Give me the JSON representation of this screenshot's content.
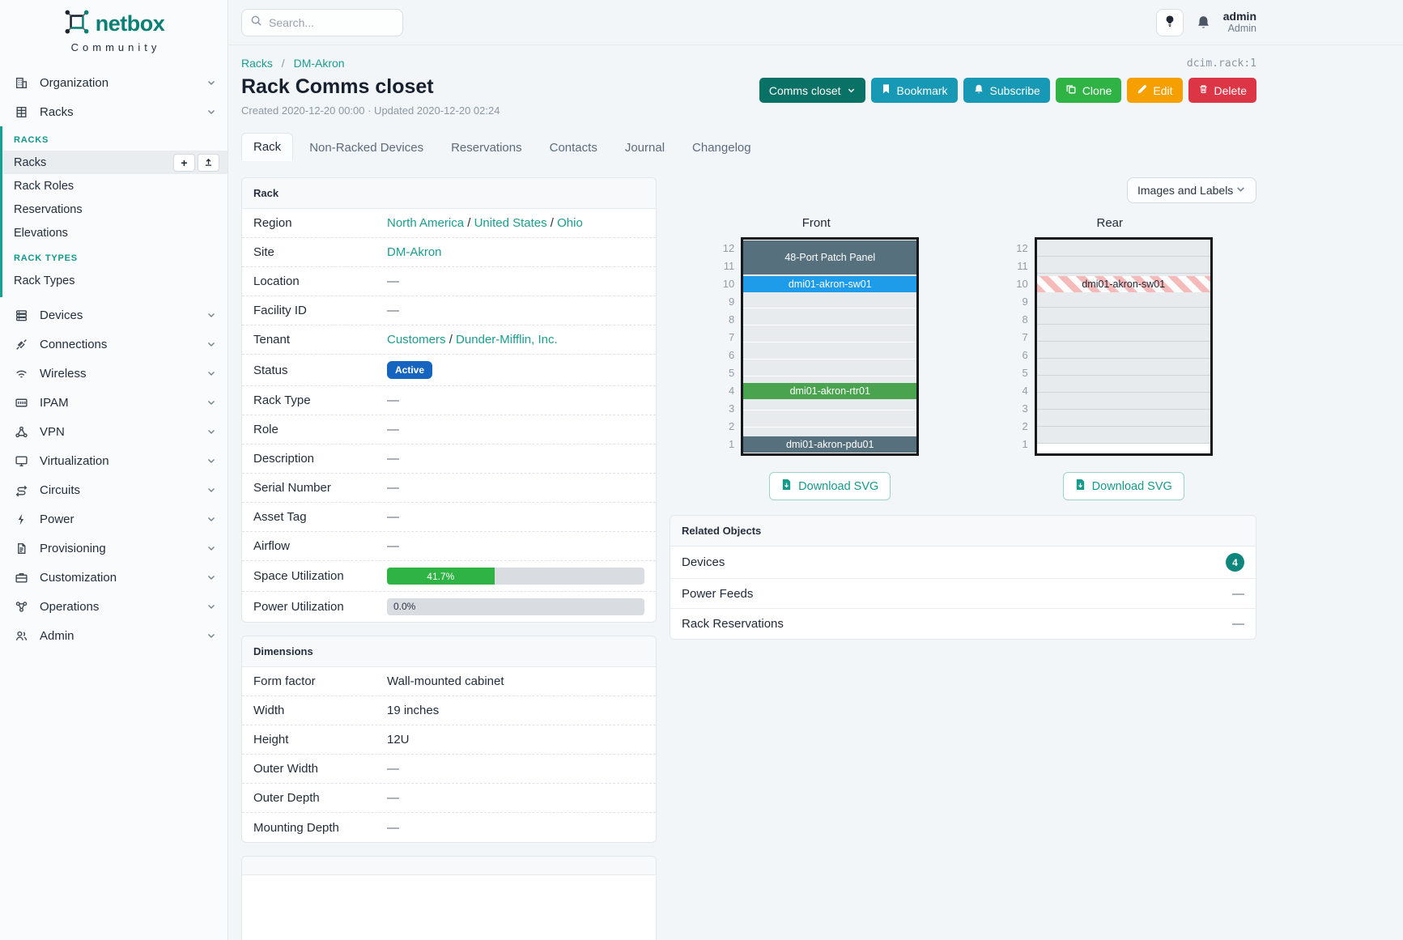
{
  "brand": {
    "name": "netbox",
    "tagline": "Community"
  },
  "topbar": {
    "search_placeholder": "Search...",
    "user_name": "admin",
    "user_role": "Admin"
  },
  "breadcrumb": {
    "items": [
      "Racks",
      "DM-Akron"
    ],
    "separator": "/"
  },
  "object_id": "dcim.rack:1",
  "page": {
    "title": "Rack Comms closet",
    "meta": "Created 2020-12-20 00:00 · Updated 2020-12-20 02:24"
  },
  "actions": {
    "view_select": {
      "label": "Comms closet"
    },
    "bookmark": "Bookmark",
    "subscribe": "Subscribe",
    "clone": "Clone",
    "edit": "Edit",
    "delete": "Delete"
  },
  "colors": {
    "brand_teal": "#0b8074",
    "link": "#1a9e8f",
    "active_badge": "#1565c0",
    "progress_green": "#2fb344",
    "device_slate": "#56707d",
    "device_blue": "#1e9ce9",
    "device_green": "#4aa44f",
    "reserved_stripe": "#f6baba",
    "count_badge": "#0f867b"
  },
  "tabs": [
    {
      "label": "Rack",
      "active": true
    },
    {
      "label": "Non-Racked Devices"
    },
    {
      "label": "Reservations"
    },
    {
      "label": "Contacts"
    },
    {
      "label": "Journal"
    },
    {
      "label": "Changelog"
    }
  ],
  "sidebar": {
    "top_groups": [
      {
        "label": "Organization",
        "icon": "building-icon"
      },
      {
        "label": "Racks",
        "icon": "rack-icon",
        "expanded": true
      }
    ],
    "racks_submenu": [
      {
        "header": "RACKS",
        "items": [
          {
            "label": "Racks",
            "active": true,
            "actions": [
              {
                "name": "add",
                "glyph": "+"
              },
              {
                "name": "import",
                "glyph": "upload"
              }
            ]
          },
          {
            "label": "Rack Roles"
          },
          {
            "label": "Reservations"
          },
          {
            "label": "Elevations"
          }
        ]
      },
      {
        "header": "RACK TYPES",
        "items": [
          {
            "label": "Rack Types"
          }
        ]
      }
    ],
    "groups": [
      {
        "label": "Devices",
        "icon": "server-icon"
      },
      {
        "label": "Connections",
        "icon": "plug-icon"
      },
      {
        "label": "Wireless",
        "icon": "wifi-icon"
      },
      {
        "label": "IPAM",
        "icon": "ipam-icon"
      },
      {
        "label": "VPN",
        "icon": "vpn-icon"
      },
      {
        "label": "Virtualization",
        "icon": "monitor-icon"
      },
      {
        "label": "Circuits",
        "icon": "circuit-icon"
      },
      {
        "label": "Power",
        "icon": "lightning-icon"
      },
      {
        "label": "Provisioning",
        "icon": "document-icon"
      },
      {
        "label": "Customization",
        "icon": "briefcase-icon"
      },
      {
        "label": "Operations",
        "icon": "operations-icon"
      },
      {
        "label": "Admin",
        "icon": "users-icon"
      }
    ]
  },
  "rack_panel": {
    "title": "Rack",
    "link_separator": " / ",
    "rows": [
      {
        "label": "Region",
        "type": "links",
        "parts": [
          "North America",
          "United States",
          "Ohio"
        ]
      },
      {
        "label": "Site",
        "type": "links",
        "parts": [
          "DM-Akron"
        ]
      },
      {
        "label": "Location",
        "type": "dash",
        "value": "—"
      },
      {
        "label": "Facility ID",
        "type": "dash",
        "value": "—"
      },
      {
        "label": "Tenant",
        "type": "links",
        "parts": [
          "Customers",
          "Dunder-Mifflin, Inc."
        ]
      },
      {
        "label": "Status",
        "type": "badge",
        "value": "Active",
        "color": "#1565c0"
      },
      {
        "label": "Rack Type",
        "type": "dash",
        "value": "—"
      },
      {
        "label": "Role",
        "type": "dash",
        "value": "—"
      },
      {
        "label": "Description",
        "type": "dash",
        "value": "—"
      },
      {
        "label": "Serial Number",
        "type": "dash",
        "value": "—"
      },
      {
        "label": "Asset Tag",
        "type": "dash",
        "value": "—"
      },
      {
        "label": "Airflow",
        "type": "dash",
        "value": "—"
      },
      {
        "label": "Space Utilization",
        "type": "progress",
        "value": "41.7%",
        "percent": 41.7,
        "color": "#2fb344"
      },
      {
        "label": "Power Utilization",
        "type": "progress",
        "value": "0.0%",
        "percent": 0,
        "color": "#2fb344"
      }
    ]
  },
  "dimensions_panel": {
    "title": "Dimensions",
    "rows": [
      {
        "label": "Form factor",
        "type": "text",
        "value": "Wall-mounted cabinet"
      },
      {
        "label": "Width",
        "type": "text",
        "value": "19 inches"
      },
      {
        "label": "Height",
        "type": "text",
        "value": "12U"
      },
      {
        "label": "Outer Width",
        "type": "dash",
        "value": "—"
      },
      {
        "label": "Outer Depth",
        "type": "dash",
        "value": "—"
      },
      {
        "label": "Mounting Depth",
        "type": "dash",
        "value": "—"
      }
    ]
  },
  "elevation": {
    "view_options_label": "Images and Labels",
    "download_label": "Download SVG",
    "unit_count": 12,
    "front": {
      "title": "Front",
      "devices": [
        {
          "name": "48-Port Patch Panel",
          "top_unit": 12,
          "u_height": 2,
          "color": "#56707d"
        },
        {
          "name": "dmi01-akron-sw01",
          "top_unit": 10,
          "u_height": 1,
          "color": "#1e9ce9"
        },
        {
          "name": "dmi01-akron-rtr01",
          "top_unit": 4,
          "u_height": 1,
          "color": "#4aa44f"
        },
        {
          "name": "dmi01-akron-pdu01",
          "top_unit": 1,
          "u_height": 1,
          "color": "#56707d"
        }
      ]
    },
    "rear": {
      "title": "Rear",
      "devices": [
        {
          "name": "dmi01-akron-sw01",
          "top_unit": 10,
          "u_height": 1,
          "reserved_stripes": true
        }
      ]
    }
  },
  "related_objects": {
    "title": "Related Objects",
    "rows": [
      {
        "label": "Devices",
        "count": "4"
      },
      {
        "label": "Power Feeds",
        "value": "—"
      },
      {
        "label": "Rack Reservations",
        "value": "—"
      }
    ]
  }
}
